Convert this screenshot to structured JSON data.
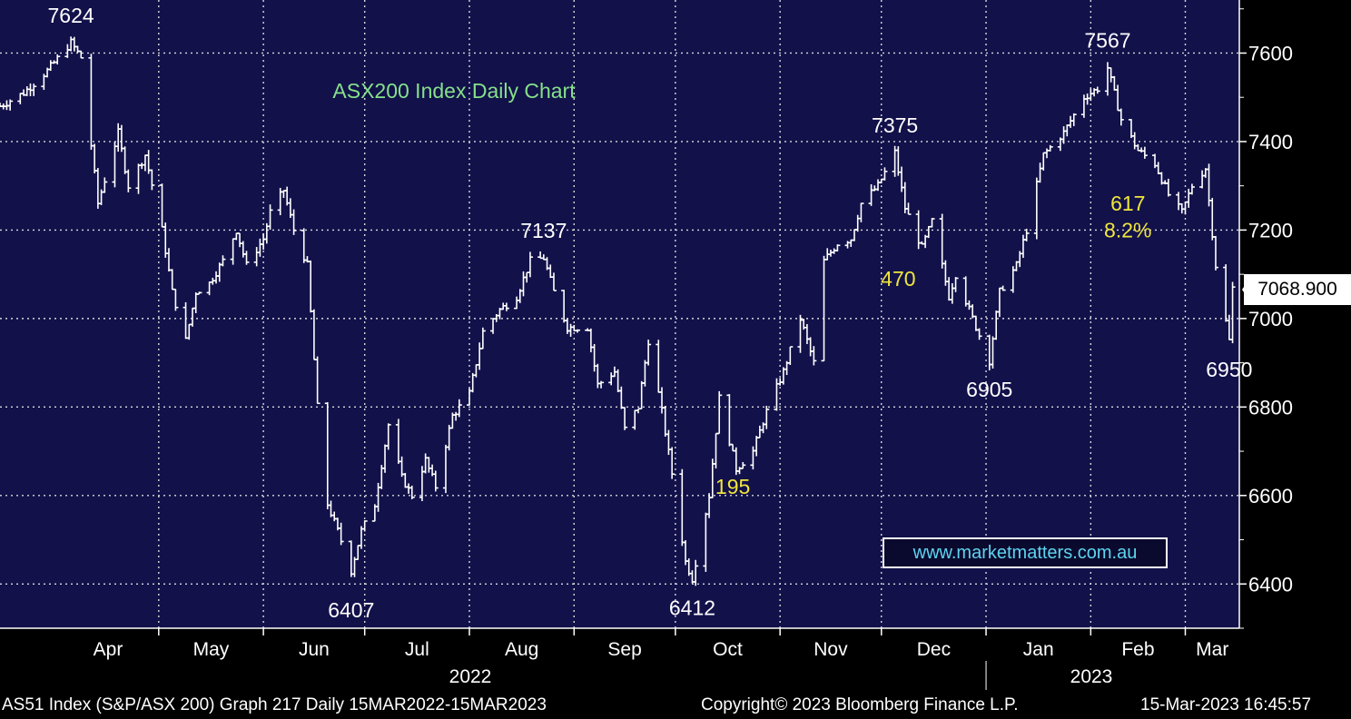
{
  "chart_data": {
    "type": "line",
    "style": "ohlc-bars",
    "title": "ASX200 Index Daily Chart",
    "ylim": [
      6300,
      7720
    ],
    "yticks": [
      6400,
      6600,
      6800,
      7000,
      7200,
      7400,
      7600
    ],
    "grid": true,
    "months": [
      "Apr",
      "May",
      "Jun",
      "Jul",
      "Aug",
      "Sep",
      "Oct",
      "Nov",
      "Dec",
      "Jan",
      "Feb",
      "Mar"
    ],
    "years": [
      "2022",
      "2023"
    ],
    "last_price": "7068.900",
    "colors": {
      "background": "#12114a",
      "bars": "#ffffff",
      "grid": "#d8d8d8",
      "title": "#86e08a",
      "yellow": "#f0e63c",
      "link": "#5fd4f0"
    },
    "series": [
      {
        "points": [
          [
            "2022-03-15",
            7480
          ],
          [
            "2022-03-22",
            7510
          ],
          [
            "2022-03-29",
            7560
          ],
          [
            "2022-04-05",
            7624
          ],
          [
            "2022-04-08",
            7590
          ],
          [
            "2022-04-13",
            7260
          ],
          [
            "2022-04-19",
            7420
          ],
          [
            "2022-04-22",
            7300
          ],
          [
            "2022-04-27",
            7370
          ],
          [
            "2022-05-02",
            7200
          ],
          [
            "2022-05-05",
            7060
          ],
          [
            "2022-05-09",
            6950
          ],
          [
            "2022-05-12",
            7060
          ],
          [
            "2022-05-16",
            7080
          ],
          [
            "2022-05-20",
            7130
          ],
          [
            "2022-05-24",
            7200
          ],
          [
            "2022-05-27",
            7120
          ],
          [
            "2022-06-01",
            7180
          ],
          [
            "2022-06-03",
            7240
          ],
          [
            "2022-06-07",
            7290
          ],
          [
            "2022-06-10",
            7200
          ],
          [
            "2022-06-14",
            7120
          ],
          [
            "2022-06-17",
            6800
          ],
          [
            "2022-06-20",
            6580
          ],
          [
            "2022-06-23",
            6520
          ],
          [
            "2022-06-27",
            6430
          ],
          [
            "2022-06-30",
            6520
          ],
          [
            "2022-07-04",
            6580
          ],
          [
            "2022-07-08",
            6760
          ],
          [
            "2022-07-12",
            6640
          ],
          [
            "2022-07-15",
            6600
          ],
          [
            "2022-07-19",
            6680
          ],
          [
            "2022-07-22",
            6620
          ],
          [
            "2022-07-27",
            6780
          ],
          [
            "2022-08-01",
            6830
          ],
          [
            "2022-08-05",
            6970
          ],
          [
            "2022-08-10",
            7020
          ],
          [
            "2022-08-15",
            7050
          ],
          [
            "2022-08-19",
            7130
          ],
          [
            "2022-08-23",
            7137
          ],
          [
            "2022-08-26",
            7060
          ],
          [
            "2022-08-30",
            6980
          ],
          [
            "2022-09-05",
            6980
          ],
          [
            "2022-09-08",
            6850
          ],
          [
            "2022-09-13",
            6880
          ],
          [
            "2022-09-16",
            6750
          ],
          [
            "2022-09-20",
            6800
          ],
          [
            "2022-09-23",
            6950
          ],
          [
            "2022-09-27",
            6790
          ],
          [
            "2022-09-30",
            6650
          ],
          [
            "2022-10-04",
            6450
          ],
          [
            "2022-10-06",
            6412
          ],
          [
            "2022-10-11",
            6600
          ],
          [
            "2022-10-14",
            6820
          ],
          [
            "2022-10-19",
            6660
          ],
          [
            "2022-10-24",
            6700
          ],
          [
            "2022-10-28",
            6790
          ],
          [
            "2022-11-02",
            6880
          ],
          [
            "2022-11-07",
            7000
          ],
          [
            "2022-11-11",
            6900
          ],
          [
            "2022-11-14",
            7130
          ],
          [
            "2022-11-18",
            7170
          ],
          [
            "2022-11-22",
            7180
          ],
          [
            "2022-11-25",
            7260
          ],
          [
            "2022-11-30",
            7300
          ],
          [
            "2022-12-05",
            7375
          ],
          [
            "2022-12-08",
            7250
          ],
          [
            "2022-12-13",
            7160
          ],
          [
            "2022-12-16",
            7220
          ],
          [
            "2022-12-21",
            7050
          ],
          [
            "2022-12-23",
            7100
          ],
          [
            "2022-12-28",
            7000
          ],
          [
            "2023-01-02",
            6905
          ],
          [
            "2023-01-05",
            7060
          ],
          [
            "2023-01-10",
            7120
          ],
          [
            "2023-01-13",
            7200
          ],
          [
            "2023-01-18",
            7370
          ],
          [
            "2023-01-24",
            7420
          ],
          [
            "2023-01-30",
            7500
          ],
          [
            "2023-02-03",
            7520
          ],
          [
            "2023-02-06",
            7567
          ],
          [
            "2023-02-10",
            7450
          ],
          [
            "2023-02-15",
            7380
          ],
          [
            "2023-02-20",
            7350
          ],
          [
            "2023-02-24",
            7280
          ],
          [
            "2023-02-28",
            7240
          ],
          [
            "2023-03-03",
            7300
          ],
          [
            "2023-03-07",
            7340
          ],
          [
            "2023-03-10",
            7120
          ],
          [
            "2023-03-14",
            6950
          ],
          [
            "2023-03-15",
            7068.9
          ]
        ]
      }
    ],
    "annotations": [
      {
        "text": "7624",
        "x": "2022-04-05",
        "y": 7624,
        "color": "white"
      },
      {
        "text": "6407",
        "x": "2022-06-27",
        "y": 6407,
        "color": "white"
      },
      {
        "text": "7137",
        "x": "2022-08-23",
        "y": 7137,
        "color": "white"
      },
      {
        "text": "6412",
        "x": "2022-10-06",
        "y": 6412,
        "color": "white"
      },
      {
        "text": "195",
        "x": "2022-10-18",
        "y": 6620,
        "color": "yellow"
      },
      {
        "text": "7375",
        "x": "2022-12-05",
        "y": 7375,
        "color": "white"
      },
      {
        "text": "470",
        "x": "2022-12-06",
        "y": 7090,
        "color": "yellow"
      },
      {
        "text": "6905",
        "x": "2023-01-02",
        "y": 6905,
        "color": "white"
      },
      {
        "text": "7567",
        "x": "2023-02-06",
        "y": 7567,
        "color": "white"
      },
      {
        "text": "617",
        "x": "2023-02-12",
        "y": 7260,
        "color": "yellow"
      },
      {
        "text": "8.2%",
        "x": "2023-02-12",
        "y": 7200,
        "color": "yellow"
      },
      {
        "text": "6950",
        "x": "2023-03-14",
        "y": 6950,
        "color": "white"
      }
    ]
  },
  "footer": {
    "left": "AS51 Index (S&P/ASX 200) Graph 217  Daily 15MAR2022-15MAR2023",
    "center": "Copyright© 2023 Bloomberg Finance L.P.",
    "right": "15-Mar-2023 16:45:57"
  },
  "link_box": "www.marketmatters.com.au"
}
